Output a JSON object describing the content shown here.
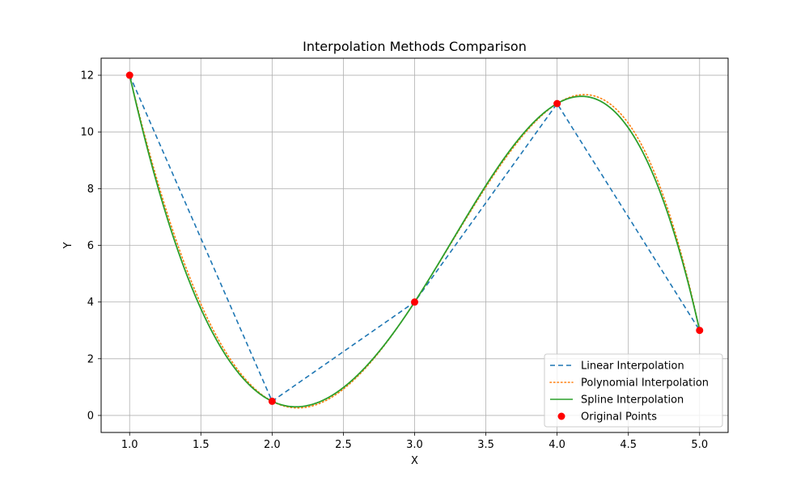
{
  "chart_data": {
    "type": "line",
    "title": "Interpolation Methods Comparison",
    "xlabel": "X",
    "ylabel": "Y",
    "xlim": [
      0.8,
      5.2
    ],
    "ylim": [
      -0.6,
      12.6
    ],
    "xticks": [
      1.0,
      1.5,
      2.0,
      2.5,
      3.0,
      3.5,
      4.0,
      4.5,
      5.0
    ],
    "xtick_labels": [
      "1.0",
      "1.5",
      "2.0",
      "2.5",
      "3.0",
      "3.5",
      "4.0",
      "4.5",
      "5.0"
    ],
    "yticks": [
      0,
      2,
      4,
      6,
      8,
      10,
      12
    ],
    "ytick_labels": [
      "0",
      "2",
      "4",
      "6",
      "8",
      "10",
      "12"
    ],
    "grid": true,
    "legend_position": "lower-right",
    "points": {
      "x": [
        1,
        2,
        3,
        4,
        5
      ],
      "y": [
        12,
        0.5,
        4,
        11,
        3
      ]
    },
    "series": [
      {
        "name": "Linear Interpolation",
        "method": "linear",
        "color": "#1f77b4",
        "style": "dashed"
      },
      {
        "name": "Polynomial Interpolation",
        "method": "polynomial",
        "color": "#ff7f0e",
        "style": "dotted"
      },
      {
        "name": "Spline Interpolation",
        "method": "spline",
        "color": "#2ca02c",
        "style": "solid"
      },
      {
        "name": "Original Points",
        "method": "points",
        "color": "#ff0000",
        "style": "marker"
      }
    ]
  }
}
